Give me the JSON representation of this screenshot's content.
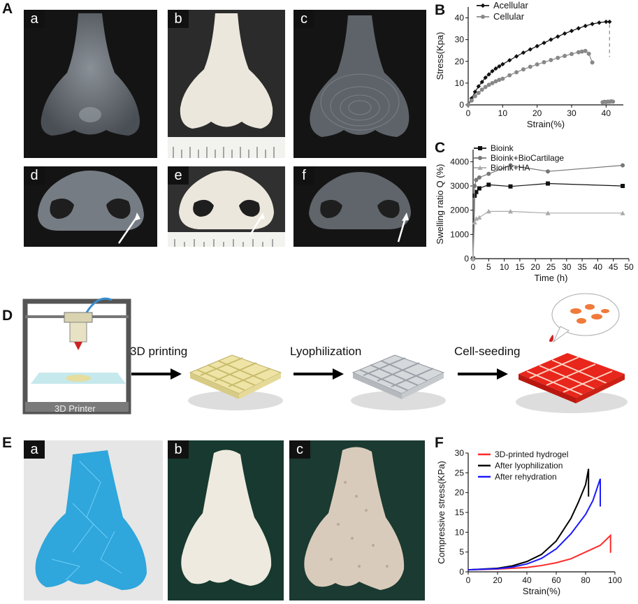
{
  "panels": {
    "A": "A",
    "B": "B",
    "C": "C",
    "D": "D",
    "E": "E",
    "F": "F"
  },
  "panel_A": {
    "sub": [
      "a",
      "b",
      "c",
      "d",
      "e",
      "f"
    ]
  },
  "panel_D": {
    "printer_label": "3D Printer",
    "steps": [
      "3D printing",
      "Lyophilization",
      "Cell-seeding"
    ]
  },
  "panel_E": {
    "sub": [
      "a",
      "b",
      "c"
    ]
  },
  "colors": {
    "skin": "#575c63",
    "white_nose": "#ece7dc",
    "blue_nose": "#2fa6dc",
    "red": "#e8261b",
    "yellow_scaffold": "#efe4a6"
  },
  "chart_data": [
    {
      "id": "B",
      "type": "line",
      "xlabel": "Strain(%)",
      "ylabel": "Stress(Kpa)",
      "xlim": [
        0,
        45
      ],
      "ylim": [
        0,
        45
      ],
      "xticks": [
        "0",
        "10",
        "20",
        "30",
        "40"
      ],
      "yticks": [
        "0",
        "10",
        "20",
        "30",
        "40"
      ],
      "series": [
        {
          "name": "Acellular",
          "color": "#111111",
          "marker": "diamond",
          "x": [
            0,
            1,
            2,
            3,
            4,
            5,
            6,
            7,
            8,
            9,
            10,
            12,
            14,
            16,
            18,
            20,
            22,
            24,
            26,
            28,
            30,
            32,
            34,
            36,
            38,
            40,
            41
          ],
          "y": [
            0,
            3,
            6,
            8.5,
            10.5,
            12.5,
            14,
            15.5,
            16.7,
            17.7,
            18.7,
            20.5,
            22.3,
            24,
            25.5,
            27,
            28.5,
            30,
            31.4,
            32.8,
            34,
            35.2,
            36.3,
            37.2,
            37.8,
            38.2,
            38.2
          ]
        },
        {
          "name": "Cellular",
          "color": "#888888",
          "marker": "circle",
          "x": [
            0,
            1,
            2,
            3,
            4,
            5,
            6,
            7,
            8,
            9,
            10,
            12,
            14,
            16,
            18,
            20,
            22,
            24,
            26,
            28,
            30,
            32,
            33,
            34,
            35,
            36
          ],
          "y": [
            0,
            2,
            4,
            5.5,
            7,
            8.2,
            9.2,
            10,
            10.8,
            11.5,
            12,
            13.6,
            15,
            16.3,
            17.5,
            18.6,
            19.6,
            20.6,
            21.6,
            22.5,
            23.4,
            24.2,
            24.5,
            24.8,
            23.5,
            19.5
          ]
        },
        {
          "name": "",
          "color": "#888888",
          "marker": "circle",
          "x": [
            39,
            39.5,
            40,
            40.5,
            41,
            41.5,
            42
          ],
          "y": [
            1.2,
            1.4,
            1.3,
            1.5,
            1.4,
            1.6,
            1.5
          ]
        }
      ]
    },
    {
      "id": "C",
      "type": "line",
      "xlabel": "Time (h)",
      "ylabel": "Swelling ratio Q (%)",
      "xlim": [
        0,
        50
      ],
      "ylim": [
        0,
        4500
      ],
      "xticks": [
        "0",
        "5",
        "10",
        "15",
        "20",
        "25",
        "30",
        "35",
        "40",
        "45",
        "50"
      ],
      "yticks": [
        "0",
        "1000",
        "2000",
        "3000",
        "4000"
      ],
      "series": [
        {
          "name": "Bioink",
          "color": "#111111",
          "marker": "square",
          "x": [
            0,
            0.5,
            1,
            2,
            5,
            12,
            24,
            48
          ],
          "y": [
            0,
            2600,
            2750,
            2900,
            3050,
            2980,
            3100,
            3000
          ]
        },
        {
          "name": "Bioink+BioCartilage",
          "color": "#777777",
          "marker": "circle",
          "x": [
            0,
            0.5,
            1,
            2,
            5,
            12,
            24,
            48
          ],
          "y": [
            0,
            3000,
            3250,
            3350,
            3500,
            3850,
            3600,
            3850
          ]
        },
        {
          "name": "Bioink+HA",
          "color": "#aaaaaa",
          "marker": "triangle",
          "x": [
            0,
            0.5,
            1,
            2,
            5,
            12,
            24,
            48
          ],
          "y": [
            0,
            1500,
            1650,
            1700,
            1950,
            1950,
            1880,
            1880
          ]
        }
      ]
    },
    {
      "id": "F",
      "type": "line",
      "xlabel": "Strain(%)",
      "ylabel": "Compressive stress(KPa)",
      "xlim": [
        0,
        100
      ],
      "ylim": [
        0,
        30
      ],
      "xticks": [
        "0",
        "20",
        "40",
        "60",
        "80",
        "100"
      ],
      "yticks": [
        "0",
        "5",
        "10",
        "15",
        "20",
        "25",
        "30"
      ],
      "series": [
        {
          "name": "3D-printed hydrogel",
          "color": "#ff2a2a",
          "x": [
            0,
            20,
            40,
            50,
            60,
            70,
            80,
            90,
            97,
            97
          ],
          "y": [
            0.5,
            0.7,
            1.1,
            1.6,
            2.3,
            3.3,
            5,
            6.7,
            9.2,
            4.8
          ]
        },
        {
          "name": "After lyophilization",
          "color": "#000000",
          "x": [
            0,
            20,
            30,
            40,
            50,
            60,
            70,
            75,
            80,
            82,
            82
          ],
          "y": [
            0.5,
            0.9,
            1.5,
            2.6,
            4.4,
            7.8,
            13.5,
            17.5,
            22,
            26,
            19
          ]
        },
        {
          "name": "After rehydration",
          "color": "#1a1aff",
          "x": [
            0,
            20,
            30,
            40,
            50,
            60,
            70,
            80,
            85,
            90,
            90
          ],
          "y": [
            0.5,
            0.8,
            1.2,
            2,
            3.4,
            5.8,
            9.6,
            14.5,
            18,
            23.5,
            16.5
          ]
        }
      ]
    }
  ]
}
